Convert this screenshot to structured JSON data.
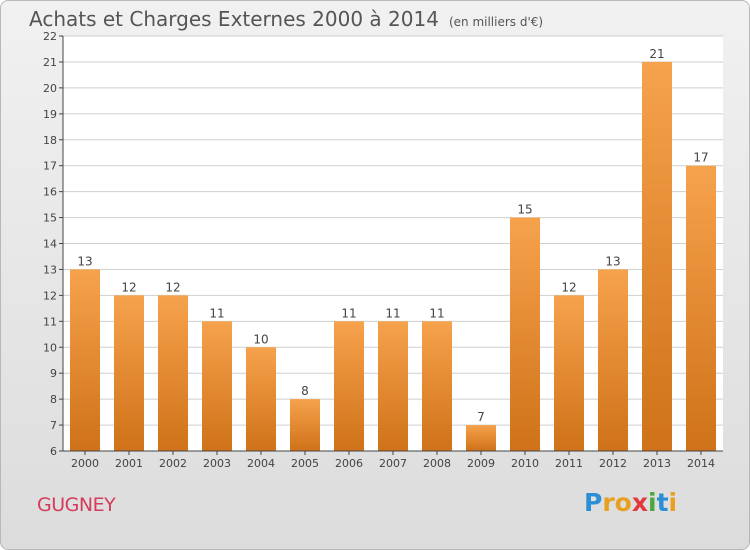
{
  "title": "Achats et Charges Externes 2000 à 2014",
  "unit_note": "(en milliers d'€)",
  "commune": "GUGNEY",
  "logo": {
    "text": "Proxiti",
    "letters": [
      {
        "ch": "P",
        "color": "#2b8fd6"
      },
      {
        "ch": "r",
        "color": "#e8a020"
      },
      {
        "ch": "o",
        "color": "#e8a020"
      },
      {
        "ch": "x",
        "color": "#e23a3a"
      },
      {
        "ch": "i",
        "color": "#4aa83c"
      },
      {
        "ch": "t",
        "color": "#2b8fd6"
      },
      {
        "ch": "i",
        "color": "#e8a020"
      }
    ]
  },
  "colors": {
    "bar_top": "#f6a24c",
    "bar_bottom": "#cf7219",
    "grid": "#cfcfcf",
    "axis": "#444444",
    "text": "#444444"
  },
  "chart_data": {
    "type": "bar",
    "categories": [
      "2000",
      "2001",
      "2002",
      "2003",
      "2004",
      "2005",
      "2006",
      "2007",
      "2008",
      "2009",
      "2010",
      "2011",
      "2012",
      "2013",
      "2014"
    ],
    "values": [
      13,
      12,
      12,
      11,
      10,
      8,
      11,
      11,
      11,
      7,
      15,
      12,
      13,
      21,
      17
    ],
    "data_labels": [
      "13",
      "12",
      "12",
      "11",
      "10",
      "8",
      "11",
      "11",
      "11",
      "7",
      "15",
      "12",
      "13",
      "21",
      "17"
    ],
    "ylim": [
      6,
      22
    ],
    "yticks": [
      6,
      7,
      8,
      9,
      10,
      11,
      12,
      13,
      14,
      15,
      16,
      17,
      18,
      19,
      20,
      21,
      22
    ],
    "grid": true,
    "legend": "none"
  }
}
